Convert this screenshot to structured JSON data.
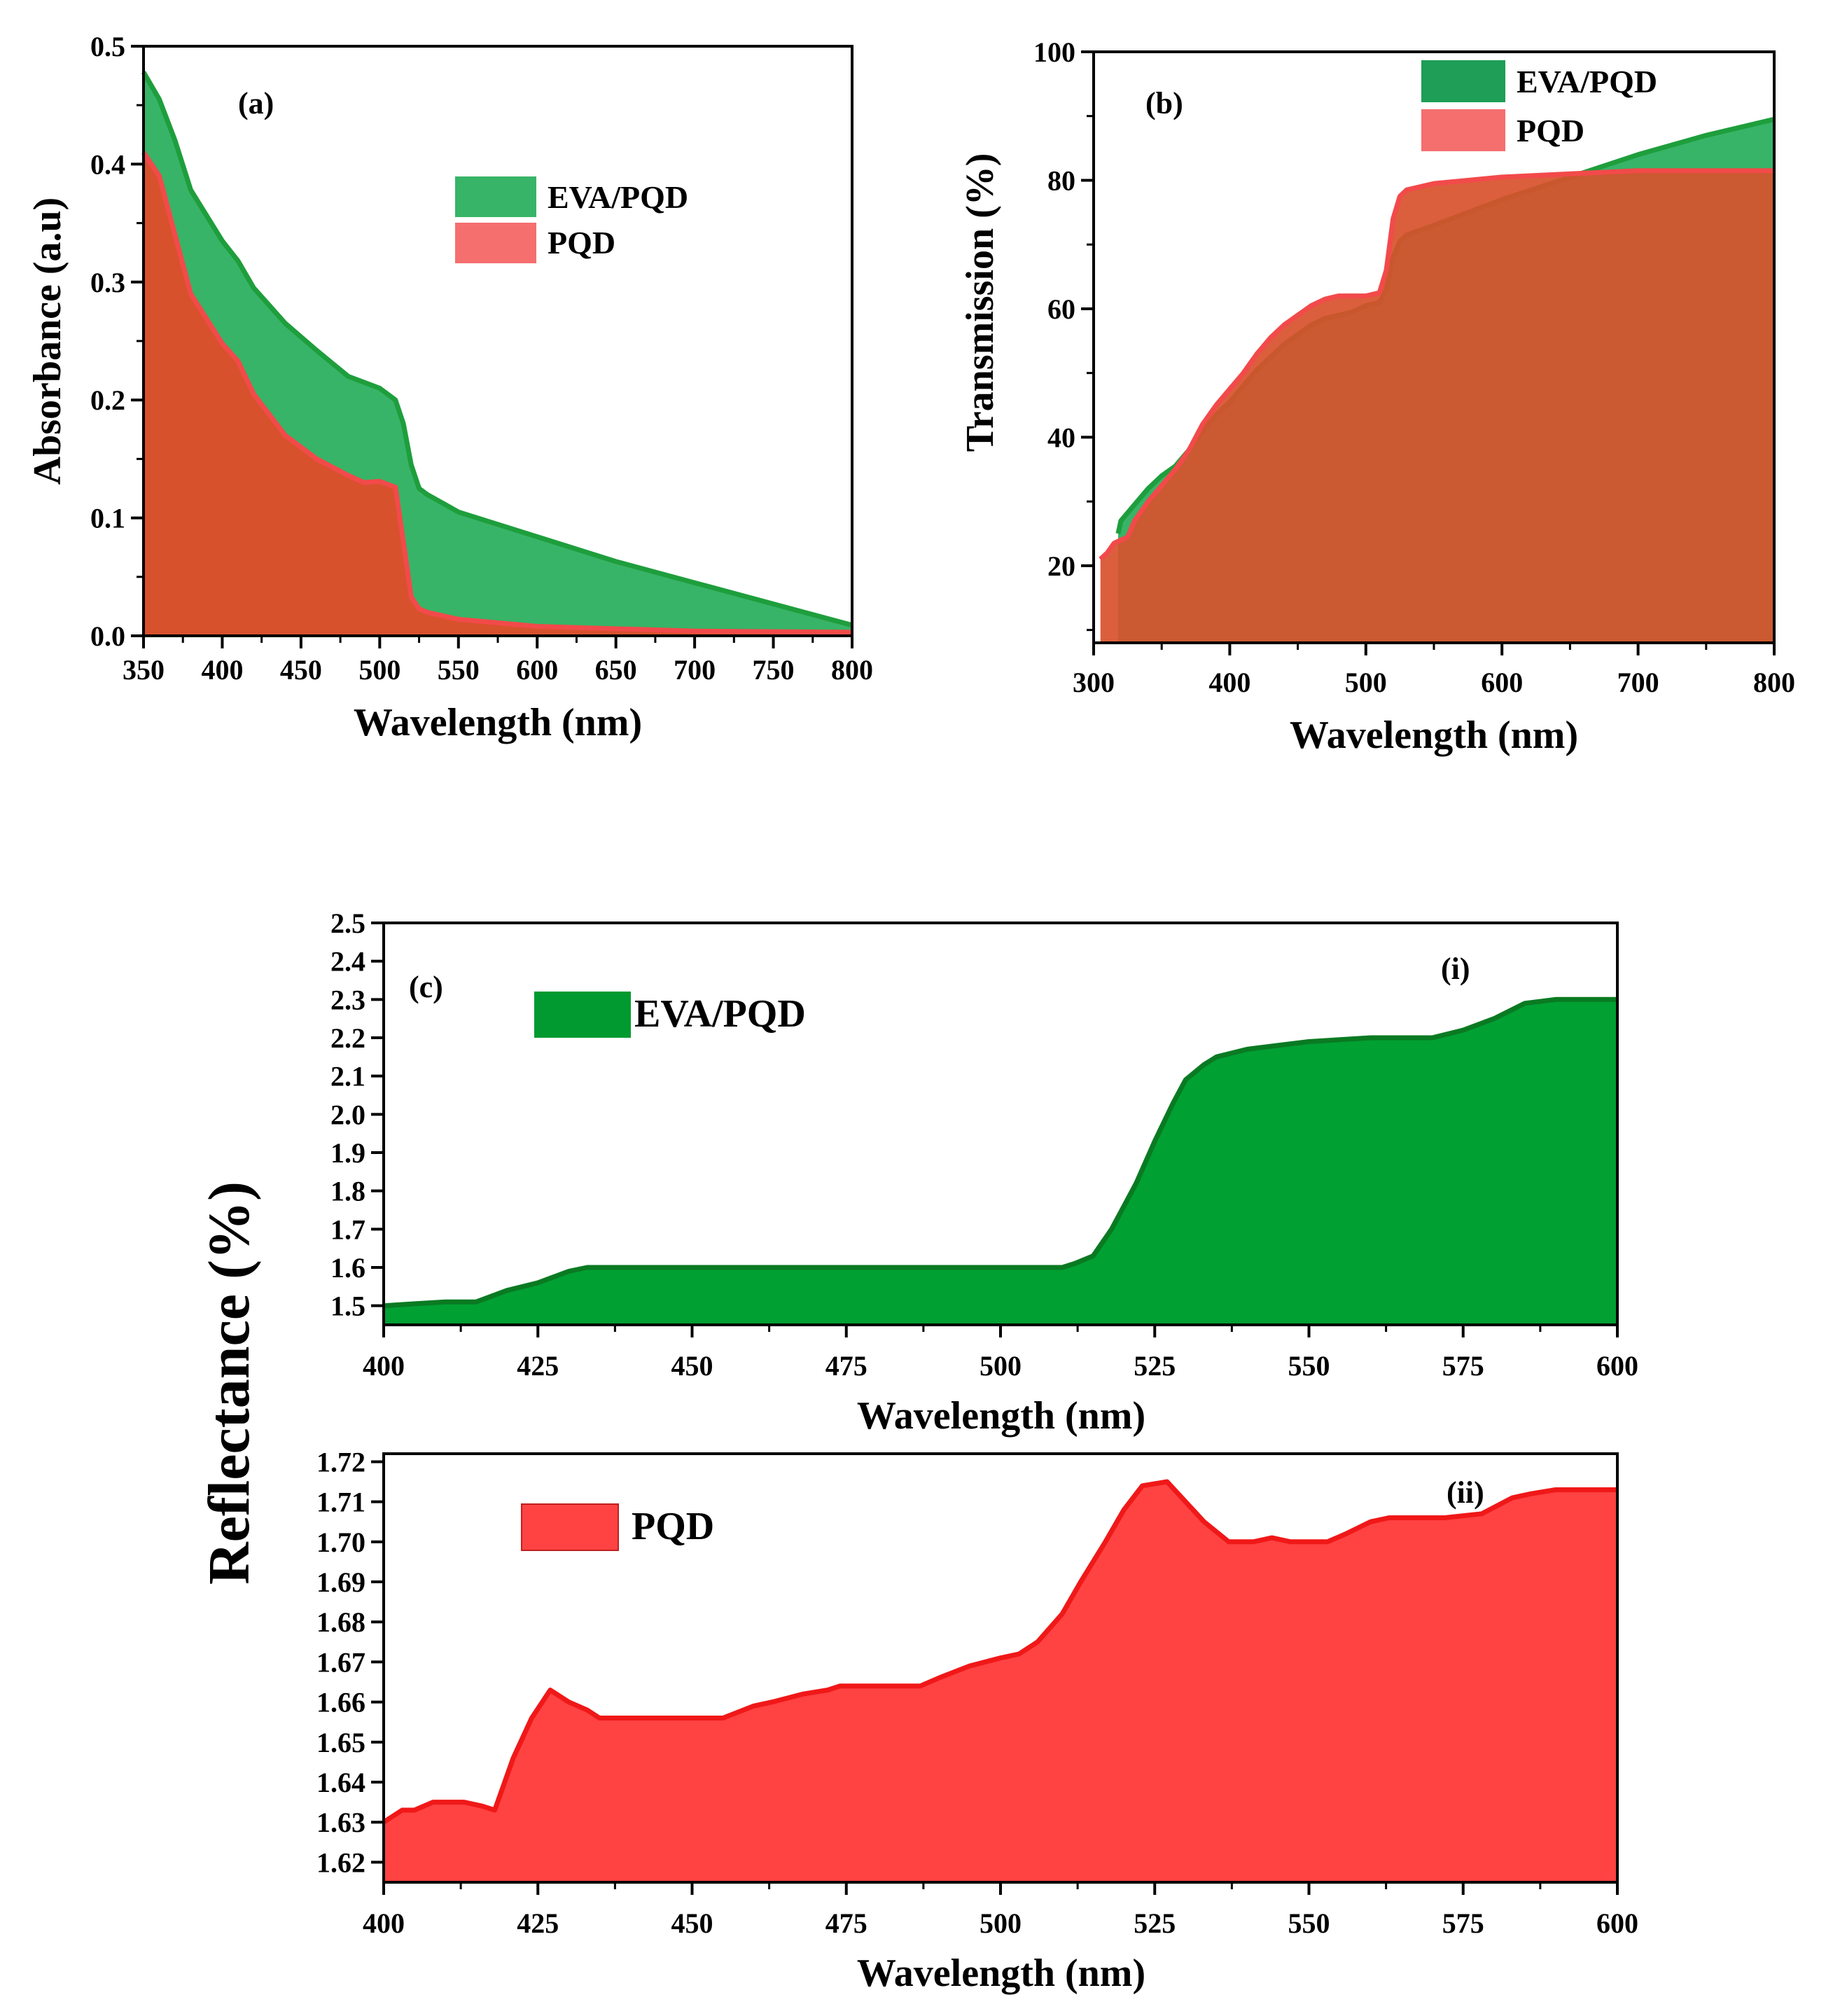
{
  "colors": {
    "eva_fill": "#37b467",
    "eva_line": "#1e9e3c",
    "pqd_fill": "#d8512d",
    "pqd_line": "#f24a4a",
    "pqd_legend": "#f56f6f",
    "c_eva_fill": "#00a033",
    "c_eva_line": "#0a7a22",
    "c_pqd_fill": "#ff4242",
    "c_pqd_line": "#f01818"
  },
  "shared_ylabel": "Reflectance (%)",
  "chart_data": [
    {
      "id": "a",
      "type": "area",
      "panel_label": "(a)",
      "xlabel": "Wavelength (nm)",
      "ylabel": "Absorbance (a.u)",
      "xlim": [
        350,
        800
      ],
      "ylim": [
        0,
        0.5
      ],
      "xticks": [
        "350",
        "400",
        "450",
        "500",
        "550",
        "600",
        "650",
        "700",
        "750",
        "800"
      ],
      "yticks": [
        "0.0",
        "0.1",
        "0.2",
        "0.3",
        "0.4",
        "0.5"
      ],
      "legend": [
        "EVA/PQD",
        "PQD"
      ],
      "legend_position": "top-right",
      "series": [
        {
          "name": "EVA/PQD",
          "x": [
            350,
            360,
            370,
            380,
            400,
            410,
            420,
            440,
            460,
            480,
            500,
            510,
            515,
            520,
            525,
            530,
            550,
            600,
            650,
            700,
            750,
            800
          ],
          "y": [
            0.478,
            0.455,
            0.42,
            0.378,
            0.335,
            0.318,
            0.295,
            0.265,
            0.242,
            0.22,
            0.21,
            0.2,
            0.18,
            0.145,
            0.125,
            0.12,
            0.105,
            0.084,
            0.063,
            0.045,
            0.027,
            0.009
          ]
        },
        {
          "name": "PQD",
          "x": [
            350,
            360,
            370,
            380,
            400,
            410,
            420,
            440,
            460,
            480,
            490,
            500,
            510,
            515,
            520,
            525,
            530,
            550,
            600,
            700,
            800
          ],
          "y": [
            0.41,
            0.39,
            0.34,
            0.29,
            0.248,
            0.233,
            0.205,
            0.17,
            0.15,
            0.136,
            0.13,
            0.131,
            0.126,
            0.08,
            0.033,
            0.023,
            0.02,
            0.014,
            0.008,
            0.004,
            0.003
          ]
        }
      ]
    },
    {
      "id": "b",
      "type": "area",
      "panel_label": "(b)",
      "xlabel": "Wavelength (nm)",
      "ylabel": "Transmission (%)",
      "xlim": [
        300,
        800
      ],
      "ylim": [
        8,
        100
      ],
      "xticks": [
        "300",
        "400",
        "500",
        "600",
        "700",
        "800"
      ],
      "yticks": [
        "20",
        "40",
        "60",
        "80",
        "100"
      ],
      "legend": [
        "EVA/PQD",
        "PQD"
      ],
      "legend_position": "top-right",
      "series": [
        {
          "name": "EVA/PQD",
          "x": [
            318,
            320,
            330,
            340,
            350,
            360,
            370,
            380,
            390,
            400,
            410,
            420,
            430,
            440,
            450,
            460,
            470,
            480,
            490,
            500,
            510,
            515,
            520,
            525,
            530,
            550,
            600,
            650,
            700,
            750,
            800
          ],
          "y": [
            25,
            27,
            29.5,
            32,
            34,
            35.5,
            38,
            41,
            43.5,
            45.5,
            48,
            50.5,
            52.5,
            54.5,
            56,
            57.5,
            58.5,
            59,
            59.5,
            60.5,
            61,
            63,
            68,
            70.5,
            71.5,
            73,
            77,
            80.5,
            84,
            87,
            89.5
          ]
        },
        {
          "name": "PQD",
          "x": [
            305,
            310,
            315,
            320,
            325,
            330,
            340,
            350,
            360,
            370,
            380,
            390,
            400,
            410,
            420,
            430,
            440,
            450,
            460,
            470,
            480,
            490,
            500,
            510,
            515,
            520,
            525,
            530,
            550,
            600,
            650,
            700,
            800
          ],
          "y": [
            21,
            22,
            23.5,
            24,
            24.5,
            27,
            30,
            32.5,
            35,
            38,
            42,
            45,
            47.5,
            50,
            53,
            55.5,
            57.5,
            59,
            60.5,
            61.5,
            62,
            62,
            62,
            62.5,
            66,
            74,
            77.5,
            78.5,
            79.5,
            80.5,
            81,
            81.5,
            81.5
          ]
        }
      ]
    },
    {
      "id": "c-i",
      "type": "area",
      "panel_label": "(c)",
      "sub_label": "(i)",
      "xlabel": "Wavelength (nm)",
      "xlim": [
        400,
        600
      ],
      "ylim": [
        1.45,
        2.5
      ],
      "xticks": [
        "400",
        "425",
        "450",
        "475",
        "500",
        "525",
        "550",
        "575",
        "600"
      ],
      "yticks": [
        "1.5",
        "1.6",
        "1.7",
        "1.8",
        "1.9",
        "2.0",
        "2.1",
        "2.2",
        "2.3",
        "2.4",
        "2.5"
      ],
      "legend": [
        "EVA/PQD"
      ],
      "series": [
        {
          "name": "EVA/PQD",
          "x": [
            400,
            405,
            410,
            415,
            420,
            425,
            430,
            433,
            440,
            460,
            480,
            500,
            510,
            512,
            515,
            518,
            520,
            522,
            525,
            528,
            530,
            533,
            535,
            540,
            545,
            550,
            560,
            570,
            575,
            580,
            585,
            590,
            600
          ],
          "y": [
            1.5,
            1.505,
            1.51,
            1.51,
            1.54,
            1.56,
            1.59,
            1.6,
            1.6,
            1.6,
            1.6,
            1.6,
            1.6,
            1.61,
            1.63,
            1.7,
            1.76,
            1.82,
            1.93,
            2.03,
            2.09,
            2.13,
            2.15,
            2.17,
            2.18,
            2.19,
            2.2,
            2.2,
            2.22,
            2.25,
            2.29,
            2.3,
            2.3
          ]
        }
      ]
    },
    {
      "id": "c-ii",
      "type": "area",
      "sub_label": "(ii)",
      "xlabel": "Wavelength (nm)",
      "xlim": [
        400,
        600
      ],
      "ylim": [
        1.615,
        1.722
      ],
      "xticks": [
        "400",
        "425",
        "450",
        "475",
        "500",
        "525",
        "550",
        "575",
        "600"
      ],
      "yticks": [
        "1.62",
        "1.63",
        "1.64",
        "1.65",
        "1.66",
        "1.67",
        "1.68",
        "1.69",
        "1.70",
        "1.71",
        "1.72"
      ],
      "legend": [
        "PQD"
      ],
      "series": [
        {
          "name": "PQD",
          "x": [
            400,
            403,
            405,
            408,
            413,
            416,
            418,
            421,
            424,
            427,
            430,
            433,
            435,
            445,
            455,
            460,
            463,
            468,
            472,
            474,
            487,
            490,
            495,
            500,
            503,
            506,
            510,
            513,
            517,
            520,
            523,
            527,
            530,
            533,
            537,
            541,
            544,
            547,
            553,
            556,
            560,
            563,
            566,
            572,
            578,
            583,
            586,
            590,
            600
          ],
          "y": [
            1.63,
            1.633,
            1.633,
            1.635,
            1.635,
            1.634,
            1.633,
            1.646,
            1.656,
            1.663,
            1.66,
            1.658,
            1.656,
            1.656,
            1.656,
            1.659,
            1.66,
            1.662,
            1.663,
            1.664,
            1.664,
            1.666,
            1.669,
            1.671,
            1.672,
            1.675,
            1.682,
            1.69,
            1.7,
            1.708,
            1.714,
            1.715,
            1.71,
            1.705,
            1.7,
            1.7,
            1.701,
            1.7,
            1.7,
            1.702,
            1.705,
            1.706,
            1.706,
            1.706,
            1.707,
            1.711,
            1.712,
            1.713,
            1.713
          ]
        }
      ]
    }
  ]
}
